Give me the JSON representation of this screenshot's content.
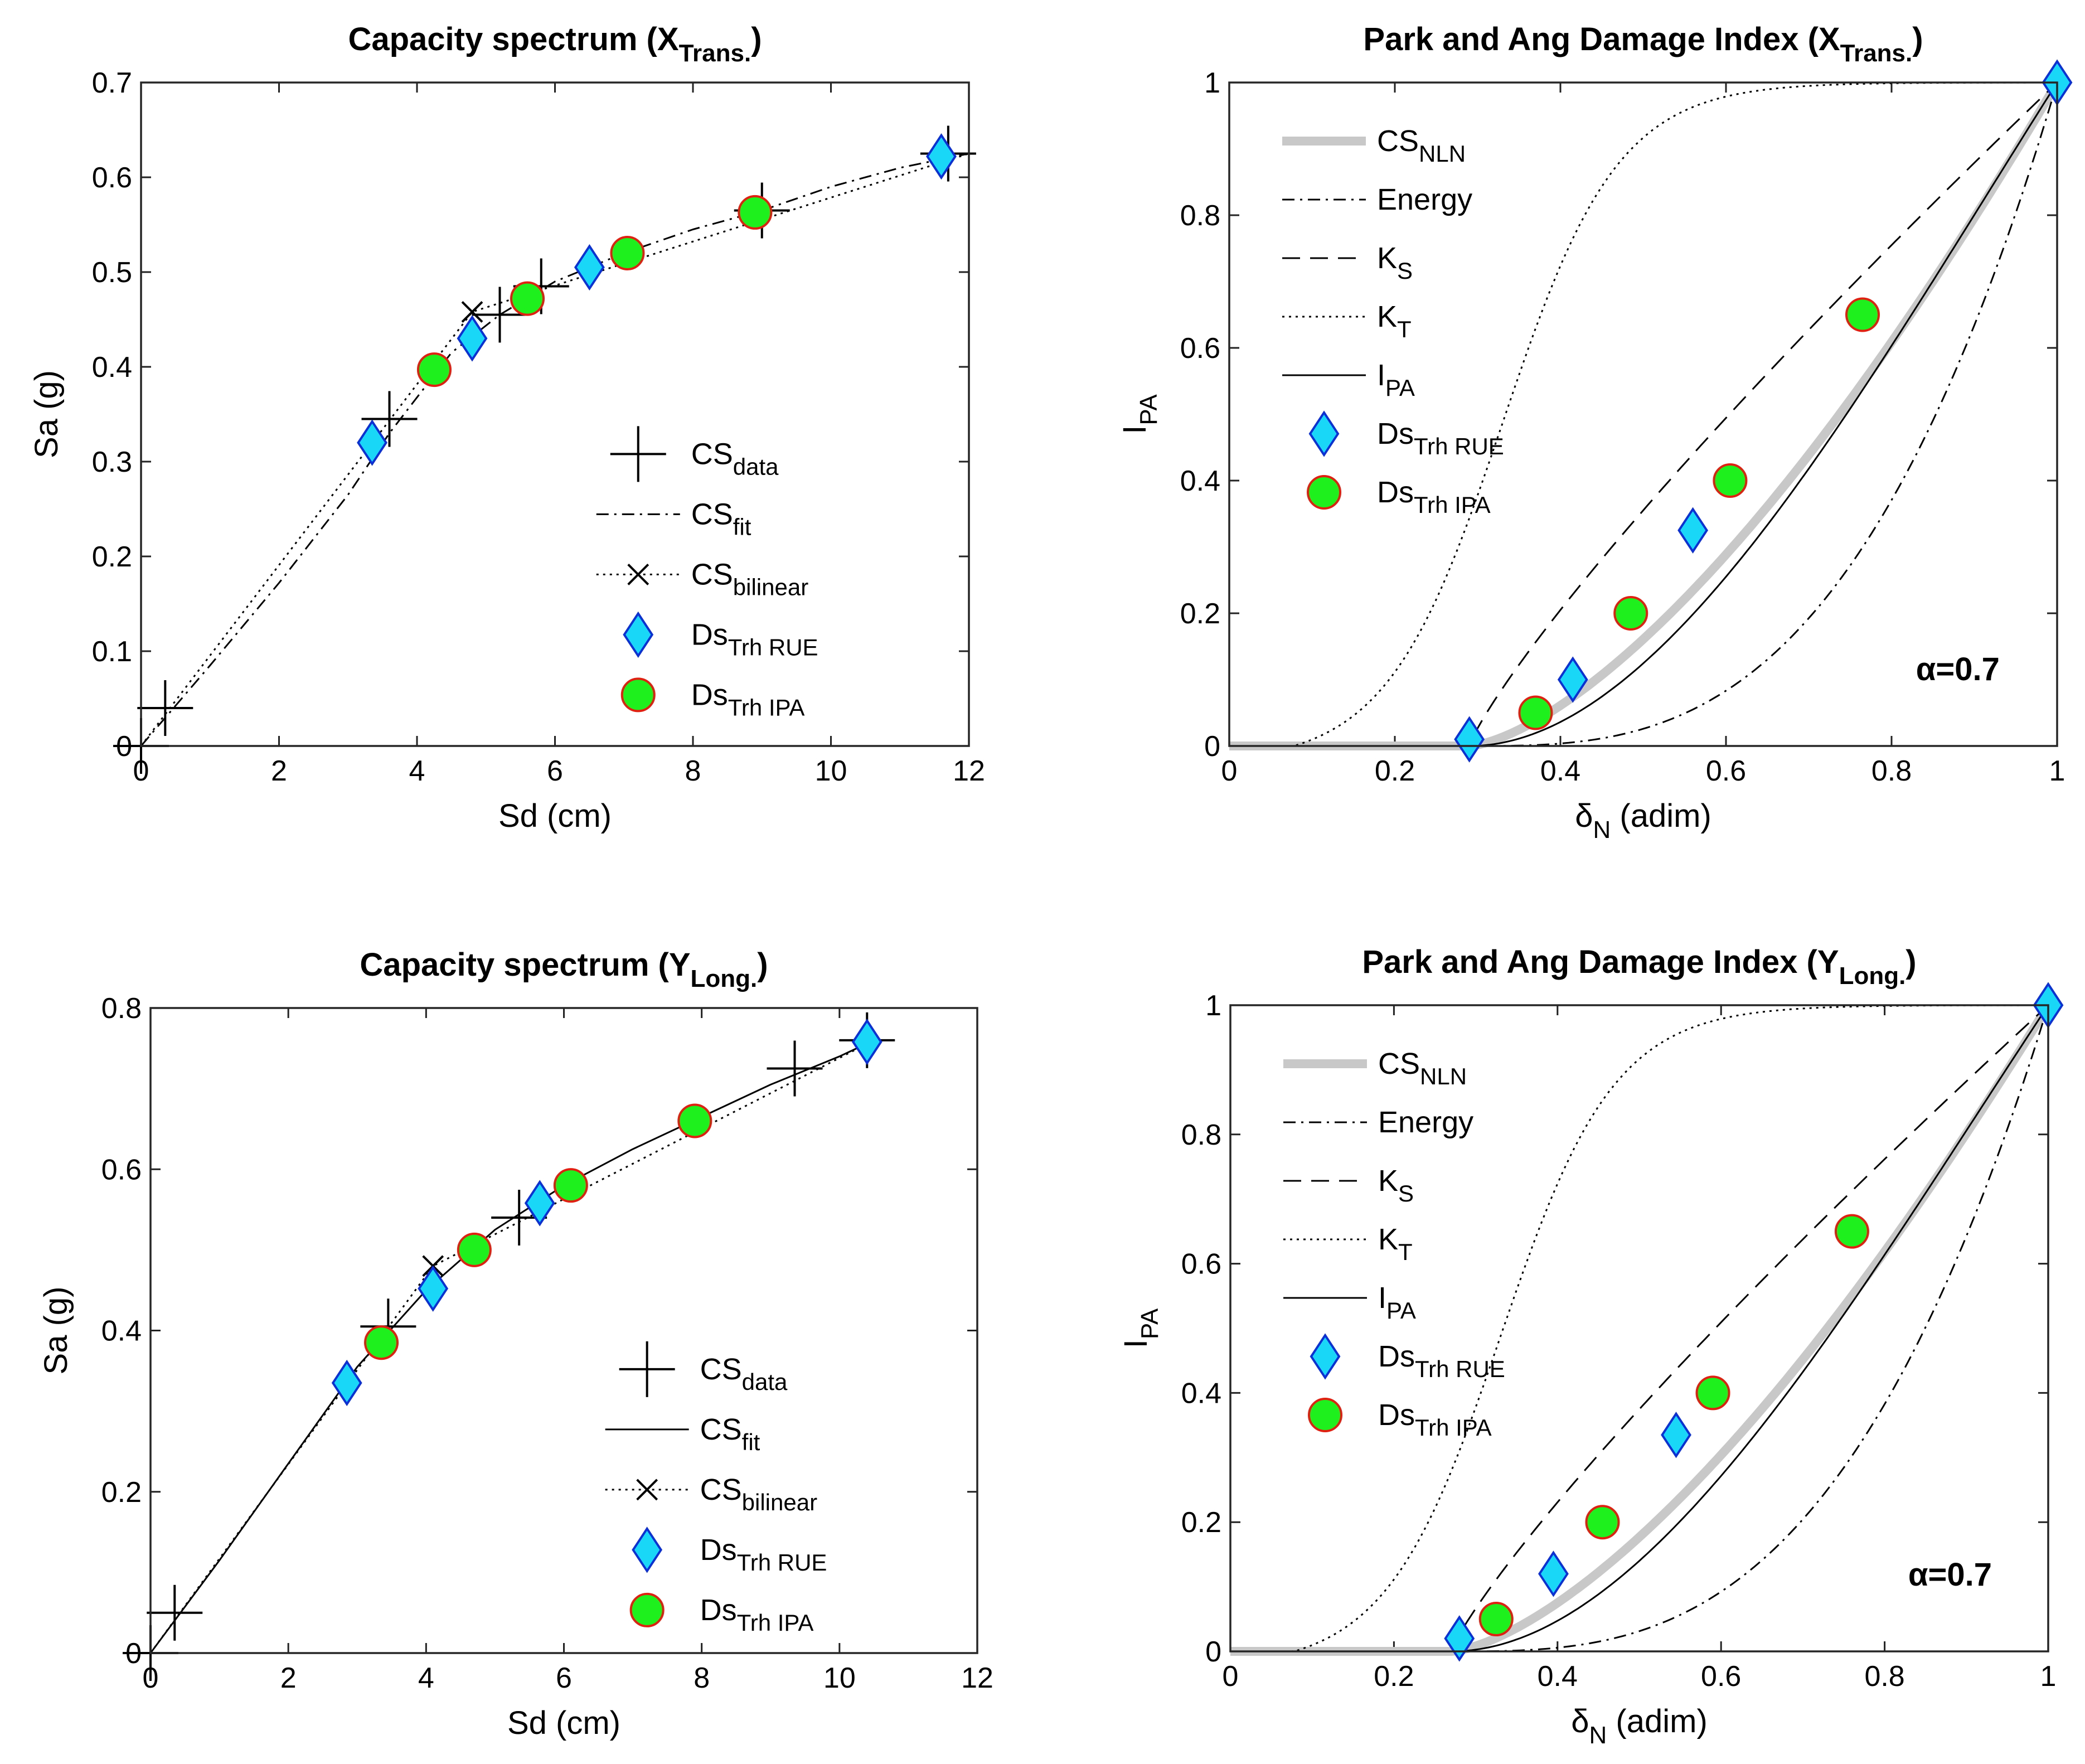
{
  "chart_data": [
    {
      "type": "line",
      "title": "Capacity spectrum (X",
      "title_sub": "Trans.",
      "title_end": ")",
      "xlabel": "Sd (cm)",
      "ylabel": "Sa (g)",
      "xlim": [
        0,
        12
      ],
      "ylim": [
        0,
        0.7
      ],
      "xticks": [
        "0",
        "2",
        "4",
        "6",
        "8",
        "10",
        "12"
      ],
      "yticks": [
        "0",
        "0.1",
        "0.2",
        "0.3",
        "0.4",
        "0.5",
        "0.6",
        "0.7"
      ],
      "legend_position": "bottom-right",
      "legend": [
        {
          "base": "CS",
          "sub": "data"
        },
        {
          "base": "CS",
          "sub": "fit"
        },
        {
          "base": "CS",
          "sub": "bilinear"
        },
        {
          "base": "Ds",
          "sub": "Trh RUE"
        },
        {
          "base": "Ds",
          "sub": "Trh IPA"
        }
      ],
      "series": [
        {
          "role": "cs_data",
          "style": "plus",
          "x": [
            0,
            0.35,
            3.6,
            5.2,
            5.8,
            9.0,
            11.7
          ],
          "y": [
            0,
            0.04,
            0.345,
            0.455,
            0.485,
            0.565,
            0.625
          ]
        },
        {
          "role": "cs_fit",
          "style": "dashdot",
          "x": [
            0,
            1,
            2,
            3,
            3.6,
            4.5,
            5.2,
            6,
            7,
            8,
            9,
            10,
            11,
            12
          ],
          "y": [
            0,
            0.085,
            0.172,
            0.265,
            0.33,
            0.415,
            0.455,
            0.49,
            0.52,
            0.545,
            0.565,
            0.59,
            0.61,
            0.625
          ]
        },
        {
          "role": "cs_bilinear",
          "style": "dotted",
          "x": [
            0,
            4.8,
            12
          ],
          "y": [
            0,
            0.458,
            0.625
          ]
        },
        {
          "role": "bilinear_marker",
          "style": "x",
          "x": [
            4.8
          ],
          "y": [
            0.458
          ]
        },
        {
          "role": "ds_rue",
          "style": "diamond",
          "x": [
            3.35,
            4.8,
            6.5,
            11.6
          ],
          "y": [
            0.32,
            0.43,
            0.505,
            0.622
          ]
        },
        {
          "role": "ds_ipa",
          "style": "circle",
          "x": [
            4.25,
            5.6,
            7.05,
            8.9
          ],
          "y": [
            0.397,
            0.472,
            0.52,
            0.563
          ]
        }
      ]
    },
    {
      "type": "line",
      "title": "Park and Ang Damage Index (X",
      "title_sub": "Trans.",
      "title_end": ")",
      "xlabel": "δ",
      "xlabel_sub": "N",
      "xlabel_end": " (adim)",
      "ylabel": "I",
      "ylabel_sub": "PA",
      "xlim": [
        0,
        1
      ],
      "ylim": [
        0,
        1
      ],
      "xticks": [
        "0",
        "0.2",
        "0.4",
        "0.6",
        "0.8",
        "1"
      ],
      "yticks": [
        "0",
        "0.2",
        "0.4",
        "0.6",
        "0.8",
        "1"
      ],
      "legend_position": "top-left",
      "annotation": "α=0.7",
      "legend": [
        {
          "base": "CS",
          "sub": "NLN"
        },
        {
          "base": "Energy",
          "sub": ""
        },
        {
          "base": "K",
          "sub": "S"
        },
        {
          "base": "K",
          "sub": "T"
        },
        {
          "base": "I",
          "sub": "PA"
        },
        {
          "base": "Ds",
          "sub": "Trh RUE"
        },
        {
          "base": "Ds",
          "sub": "Trh IPA"
        }
      ],
      "curve_params": {
        "d0": 0.29,
        "cs_nln_exp": 1.5,
        "energy_exp": 3.0,
        "ks_exp": 0.85,
        "kt_logistic_center": 0.33,
        "kt_logistic_width": 0.07
      },
      "ds_rue": {
        "x": [
          0.29,
          0.415,
          0.56,
          1.0
        ],
        "y": [
          0.01,
          0.1,
          0.325,
          1.0
        ]
      },
      "ds_ipa": {
        "x": [
          0.37,
          0.485,
          0.605,
          0.765
        ],
        "y": [
          0.05,
          0.2,
          0.4,
          0.65
        ]
      }
    },
    {
      "type": "line",
      "title": "Capacity spectrum (Y",
      "title_sub": "Long.",
      "title_end": ")",
      "xlabel": "Sd (cm)",
      "ylabel": "Sa (g)",
      "xlim": [
        0,
        12
      ],
      "ylim": [
        0,
        0.8
      ],
      "xticks": [
        "0",
        "2",
        "4",
        "6",
        "8",
        "10",
        "12"
      ],
      "yticks": [
        "0",
        "0.2",
        "0.4",
        "0.6",
        "0.8"
      ],
      "legend_position": "bottom-right",
      "legend": [
        {
          "base": "CS",
          "sub": "data"
        },
        {
          "base": "CS",
          "sub": "fit"
        },
        {
          "base": "CS",
          "sub": "bilinear"
        },
        {
          "base": "Ds",
          "sub": "Trh RUE"
        },
        {
          "base": "Ds",
          "sub": "Trh IPA"
        }
      ],
      "series": [
        {
          "role": "cs_data",
          "style": "plus",
          "x": [
            0,
            0.35,
            3.45,
            5.35,
            9.35,
            10.4
          ],
          "y": [
            0,
            0.05,
            0.405,
            0.54,
            0.725,
            0.76
          ]
        },
        {
          "role": "cs_fit",
          "style": "solid",
          "x": [
            0,
            1,
            2,
            3,
            4,
            5,
            6,
            7,
            8,
            9,
            10,
            10.5
          ],
          "y": [
            0,
            0.115,
            0.235,
            0.355,
            0.45,
            0.525,
            0.58,
            0.625,
            0.665,
            0.705,
            0.74,
            0.76
          ]
        },
        {
          "role": "cs_bilinear",
          "style": "dotted",
          "x": [
            0,
            4.1,
            10.5
          ],
          "y": [
            0,
            0.48,
            0.76
          ]
        },
        {
          "role": "bilinear_marker",
          "style": "x",
          "x": [
            4.1
          ],
          "y": [
            0.48
          ]
        },
        {
          "role": "ds_rue",
          "style": "diamond",
          "x": [
            2.85,
            4.1,
            5.65,
            10.4
          ],
          "y": [
            0.335,
            0.452,
            0.558,
            0.758
          ]
        },
        {
          "role": "ds_ipa",
          "style": "circle",
          "x": [
            3.35,
            4.7,
            6.1,
            7.9
          ],
          "y": [
            0.385,
            0.5,
            0.58,
            0.66
          ]
        }
      ]
    },
    {
      "type": "line",
      "title": "Park and Ang Damage Index (Y",
      "title_sub": "Long.",
      "title_end": ")",
      "xlabel": "δ",
      "xlabel_sub": "N",
      "xlabel_end": " (adim)",
      "ylabel": "I",
      "ylabel_sub": "PA",
      "xlim": [
        0,
        1
      ],
      "ylim": [
        0,
        1
      ],
      "xticks": [
        "0",
        "0.2",
        "0.4",
        "0.6",
        "0.8",
        "1"
      ],
      "yticks": [
        "0",
        "0.2",
        "0.4",
        "0.6",
        "0.8",
        "1"
      ],
      "legend_position": "top-left",
      "annotation": "α=0.7",
      "legend": [
        {
          "base": "CS",
          "sub": "NLN"
        },
        {
          "base": "Energy",
          "sub": ""
        },
        {
          "base": "K",
          "sub": "S"
        },
        {
          "base": "K",
          "sub": "T"
        },
        {
          "base": "I",
          "sub": "PA"
        },
        {
          "base": "Ds",
          "sub": "Trh RUE"
        },
        {
          "base": "Ds",
          "sub": "Trh IPA"
        }
      ],
      "curve_params": {
        "d0": 0.27,
        "cs_nln_exp": 1.5,
        "energy_exp": 3.0,
        "ks_exp": 0.85,
        "kt_logistic_center": 0.33,
        "kt_logistic_width": 0.07
      },
      "ds_rue": {
        "x": [
          0.28,
          0.395,
          0.545,
          1.0
        ],
        "y": [
          0.02,
          0.12,
          0.335,
          1.0
        ]
      },
      "ds_ipa": {
        "x": [
          0.325,
          0.455,
          0.59,
          0.76
        ],
        "y": [
          0.05,
          0.2,
          0.4,
          0.65
        ]
      }
    }
  ]
}
